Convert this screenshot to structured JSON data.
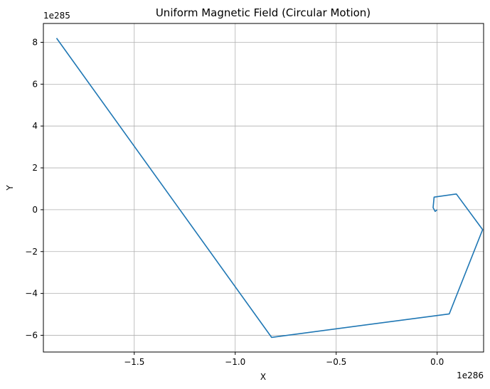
{
  "chart_data": {
    "type": "line",
    "title": "Uniform Magnetic Field (Circular Motion)",
    "xlabel": "X",
    "ylabel": "Y",
    "x_offset_label": "1e286",
    "y_offset_label": "1e285",
    "xlim": [
      -1.95,
      0.23
    ],
    "ylim": [
      -6.8,
      8.9
    ],
    "x_ticks": [
      -1.5,
      -1.0,
      -0.5,
      0.0
    ],
    "x_tick_labels": [
      "−1.5",
      "−1.0",
      "−0.5",
      "0.0"
    ],
    "y_ticks": [
      -6,
      -4,
      -2,
      0,
      2,
      4,
      6,
      8
    ],
    "y_tick_labels": [
      "−6",
      "−4",
      "−2",
      "0",
      "2",
      "4",
      "6",
      "8"
    ],
    "grid": true,
    "series": [
      {
        "color": "#1f77b4",
        "x": [
          0.0,
          -0.01,
          -0.02,
          -0.015,
          0.095,
          0.225,
          0.06,
          -0.82,
          -1.885
        ],
        "y": [
          0.0,
          -0.08,
          0.1,
          0.6,
          0.75,
          -0.95,
          -4.98,
          -6.1,
          8.2
        ]
      }
    ]
  }
}
